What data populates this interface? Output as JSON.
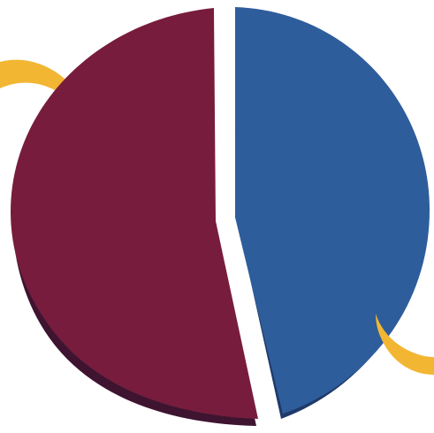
{
  "graphic": {
    "description_colors": {
      "background": "#ffffff",
      "left_segment": "#7a1c3e",
      "left_segment_shadow": "#3e1430",
      "right_segment": "#2f5f9f",
      "right_segment_shadow": "#1e3a6a",
      "accent_swoosh": "#f2b632"
    },
    "segments": [
      {
        "name": "left-segment",
        "color_key": "left_segment"
      },
      {
        "name": "right-segment",
        "color_key": "right_segment"
      }
    ],
    "swooshes": [
      {
        "name": "swoosh-top-left",
        "color_key": "accent_swoosh"
      },
      {
        "name": "swoosh-bottom-right",
        "color_key": "accent_swoosh"
      }
    ]
  }
}
